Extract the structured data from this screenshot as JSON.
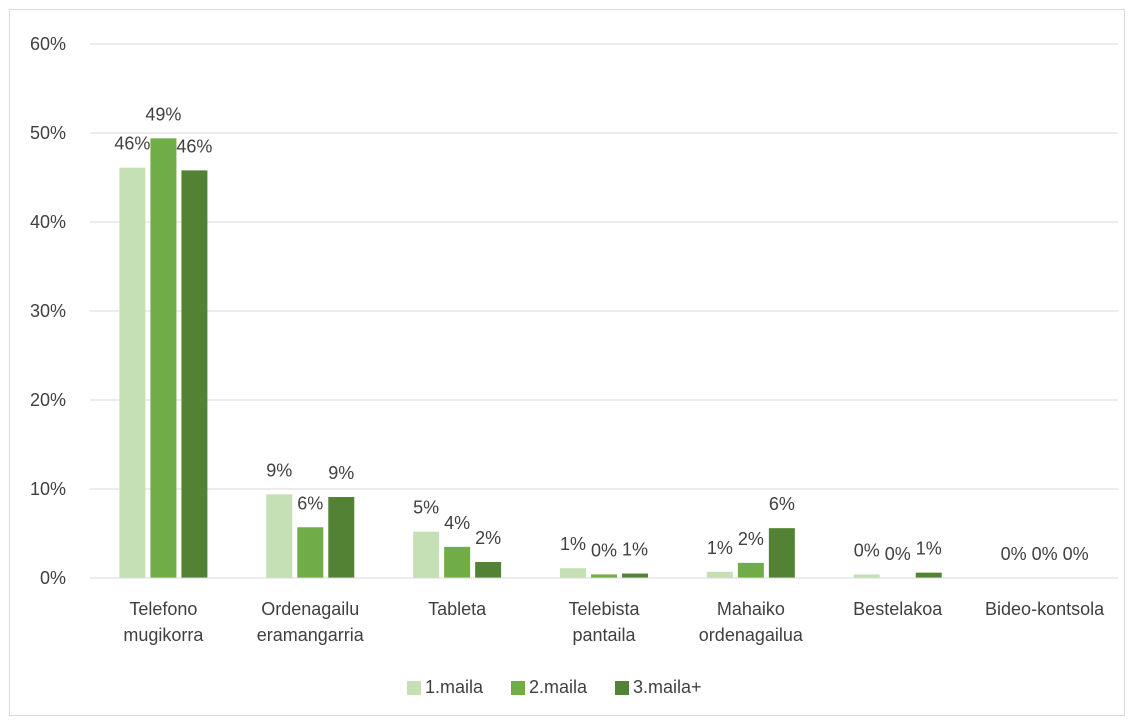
{
  "chart_data": {
    "type": "bar",
    "title": "",
    "xlabel": "",
    "ylabel": "",
    "ylim": [
      0,
      60
    ],
    "y_ticks": [
      "0%",
      "10%",
      "20%",
      "30%",
      "40%",
      "50%",
      "60%"
    ],
    "y_tick_values": [
      0,
      10,
      20,
      30,
      40,
      50,
      60
    ],
    "grid": true,
    "legend_position": "bottom",
    "categories": [
      [
        "Telefono",
        "mugikorra"
      ],
      [
        "Ordenagailu",
        "eramangarria"
      ],
      [
        "Tableta"
      ],
      [
        "Telebista",
        "pantaila"
      ],
      [
        "Mahaiko",
        "ordenagailua"
      ],
      [
        "Bestelakoa"
      ],
      [
        "Bideo-kontsola"
      ]
    ],
    "series": [
      {
        "name": "1.maila",
        "color": "#c5e0b4",
        "values": [
          46.1,
          9.4,
          5.2,
          1.1,
          0.7,
          0.4,
          0.0
        ],
        "labels": [
          "46%",
          "9%",
          "5%",
          "1%",
          "1%",
          "0%",
          "0%"
        ]
      },
      {
        "name": "2.maila",
        "color": "#70ad47",
        "values": [
          49.4,
          5.7,
          3.5,
          0.4,
          1.7,
          0.0,
          0.0
        ],
        "labels": [
          "49%",
          "6%",
          "4%",
          "0%",
          "2%",
          "0%",
          "0%"
        ]
      },
      {
        "name": "3.maila+",
        "color": "#548235",
        "values": [
          45.8,
          9.1,
          1.8,
          0.5,
          5.6,
          0.6,
          0.0
        ],
        "labels": [
          "46%",
          "9%",
          "2%",
          "1%",
          "6%",
          "1%",
          "0%"
        ]
      }
    ]
  }
}
